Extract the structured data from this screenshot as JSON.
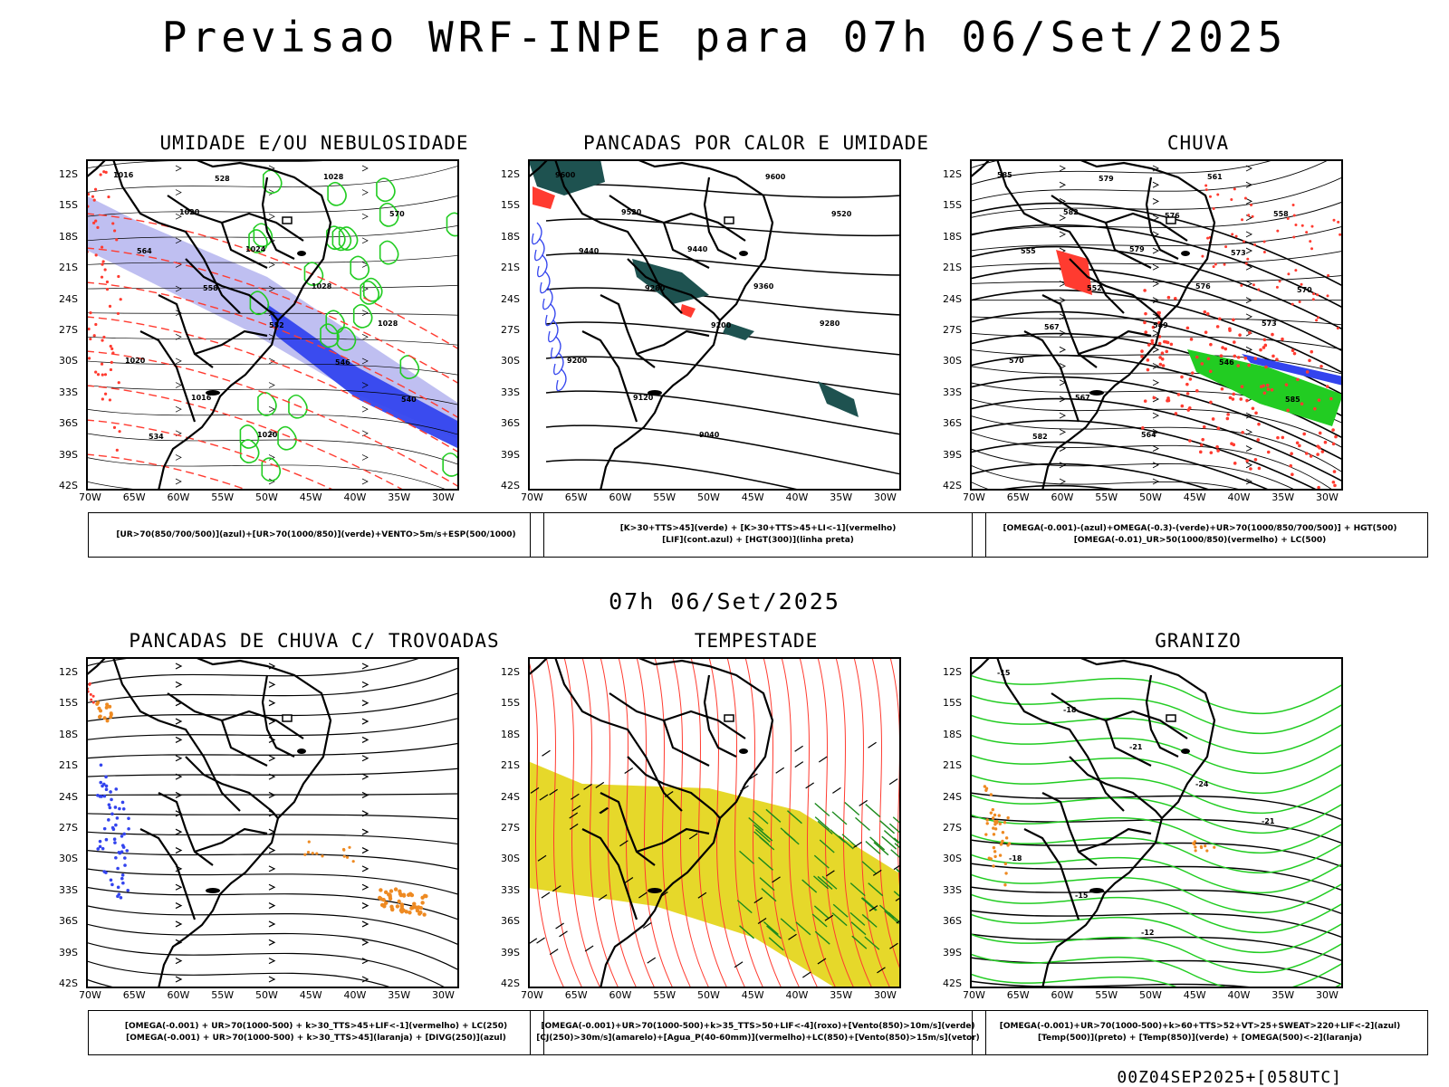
{
  "title": "Previsao WRF-INPE  para 07h 06/Set/2025",
  "mid_title": "07h 06/Set/2025",
  "footer": "00Z04SEP2025+[058UTC]",
  "lat_labels": [
    "12S",
    "15S",
    "18S",
    "21S",
    "24S",
    "27S",
    "30S",
    "33S",
    "36S",
    "39S",
    "42S"
  ],
  "lon_labels": [
    "70W",
    "65W",
    "60W",
    "55W",
    "50W",
    "45W",
    "40W",
    "35W",
    "30W"
  ],
  "colors": {
    "accent_red": "#ff3b30",
    "green": "#22cc22",
    "blue": "#3344ee",
    "lavender": "#b8b8f0",
    "teal": "#1e5250",
    "yellow": "#e6d82a",
    "orange": "#ee8a22"
  },
  "panels": [
    {
      "id": "umidade",
      "title": "UMIDADE E/OU NEBULOSIDADE",
      "legend": [
        "[UR>70(850/700/500)](azul)+[UR>70(1000/850)](verde)+VENTO>5m/s+ESP(500/1000)"
      ],
      "contour_labels": [
        "1016",
        "1020",
        "1024",
        "1028",
        "1028",
        "1020",
        "1016",
        "1020",
        "1028",
        "570",
        "564",
        "558",
        "552",
        "546",
        "540",
        "534",
        "528"
      ]
    },
    {
      "id": "pancadas-calor",
      "title": "PANCADAS POR CALOR E UMIDADE",
      "legend": [
        "[K>30+TTS>45](verde) + [K>30+TTS>45+LI<-1](vermelho)",
        "[LIF](cont.azul) + [HGT(300)](linha preta)"
      ],
      "contour_labels": [
        "9600",
        "9520",
        "9440",
        "9360",
        "9280",
        "9200",
        "9120",
        "9040",
        "9600",
        "9520",
        "9440",
        "9280",
        "9200"
      ]
    },
    {
      "id": "chuva",
      "title": "CHUVA",
      "legend": [
        "[OMEGA(-0.001)-(azul)+OMEGA(-0.3)-(verde)+UR>70(1000/850/700/500)] + HGT(500)",
        "[OMEGA(-0.01)_UR>50(1000/850)(vermelho) + LC(500)"
      ],
      "contour_labels": [
        "585",
        "582",
        "579",
        "576",
        "573",
        "570",
        "567",
        "564",
        "561",
        "558",
        "555",
        "552",
        "549",
        "546",
        "585",
        "582",
        "579",
        "576",
        "573",
        "570",
        "567"
      ]
    },
    {
      "id": "trovoadas",
      "title": "PANCADAS DE CHUVA C/ TROVOADAS",
      "legend": [
        "[OMEGA(-0.001) + UR>70(1000-500) + k>30_TTS>45+LIF<-1](vermelho) + LC(250)",
        "[OMEGA(-0.001) + UR>70(1000-500) + k>30_TTS>45](laranja) + [DIVG(250)](azul)"
      ],
      "contour_labels": []
    },
    {
      "id": "tempestade",
      "title": "TEMPESTADE",
      "legend": [
        "[OMEGA(-0.001)+UR>70(1000-500)+k>35_TTS>50+LIF<-4](roxo)+[Vento(850)>10m/s](verde)",
        "[CJ(250)>30m/s](amarelo)+[Agua_P(40-60mm)](vermelho)+LC(850)+[Vento(850)>15m/s](vetor)"
      ],
      "contour_labels": []
    },
    {
      "id": "granizo",
      "title": "GRANIZO",
      "legend": [
        "[OMEGA(-0.001)+UR>70(1000-500)+k>60+TTS>52+VT>25+SWEAT>220+LIF<-2](azul)",
        "[Temp(500)](preto) + [Temp(850)](verde) + [OMEGA(500)<-2](laranja)"
      ],
      "contour_labels": [
        "-15",
        "-18",
        "-21",
        "-24",
        "-21",
        "-18",
        "-15",
        "-12"
      ]
    }
  ]
}
